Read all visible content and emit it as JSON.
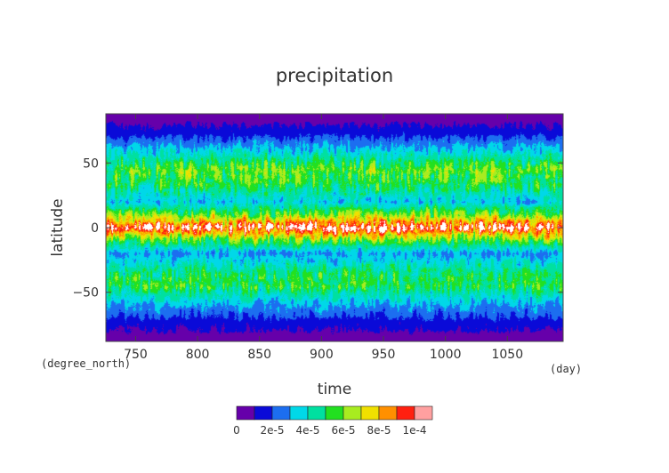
{
  "chart_data": {
    "type": "heatmap",
    "title": "precipitation",
    "xlabel": "time",
    "ylabel": "latitude",
    "x_unit": "(day)",
    "y_unit": "(degree_north)",
    "xlim": [
      726,
      1095
    ],
    "ylim": [
      -88,
      88
    ],
    "x_ticks": [
      750,
      800,
      850,
      900,
      950,
      1000,
      1050
    ],
    "y_ticks": [
      50,
      0,
      -50
    ],
    "y_tick_labels": [
      "50",
      "0",
      "−50"
    ],
    "colorbar": {
      "labels": [
        "0",
        "2e-5",
        "4e-5",
        "6e-5",
        "8e-5",
        "1e-4"
      ],
      "label_values": [
        0,
        2e-05,
        4e-05,
        6e-05,
        8e-05,
        0.0001
      ],
      "levels": [
        0,
        1e-05,
        2e-05,
        3e-05,
        4e-05,
        5e-05,
        6e-05,
        7e-05,
        8e-05,
        9e-05,
        0.0001
      ],
      "colors": [
        "#6600aa",
        "#0a0ad8",
        "#1c6ef0",
        "#00d8e8",
        "#00e0a0",
        "#22e020",
        "#a8ec20",
        "#f0e000",
        "#ff9000",
        "#ff2010",
        "#ffa0a0"
      ],
      "over_color": "#ffffff"
    },
    "latitude_profile": {
      "lat": [
        -88,
        -75,
        -60,
        -45,
        -35,
        -20,
        -10,
        0,
        10,
        20,
        35,
        45,
        60,
        75,
        88
      ],
      "value": [
        4e-06,
        1.3e-05,
        2.9e-05,
        5.2e-05,
        4.7e-05,
        2.8e-05,
        5.5e-05,
        9.8e-05,
        5.8e-05,
        3.3e-05,
        5.2e-05,
        5.7e-05,
        3.3e-05,
        1.3e-05,
        4e-06
      ]
    }
  }
}
